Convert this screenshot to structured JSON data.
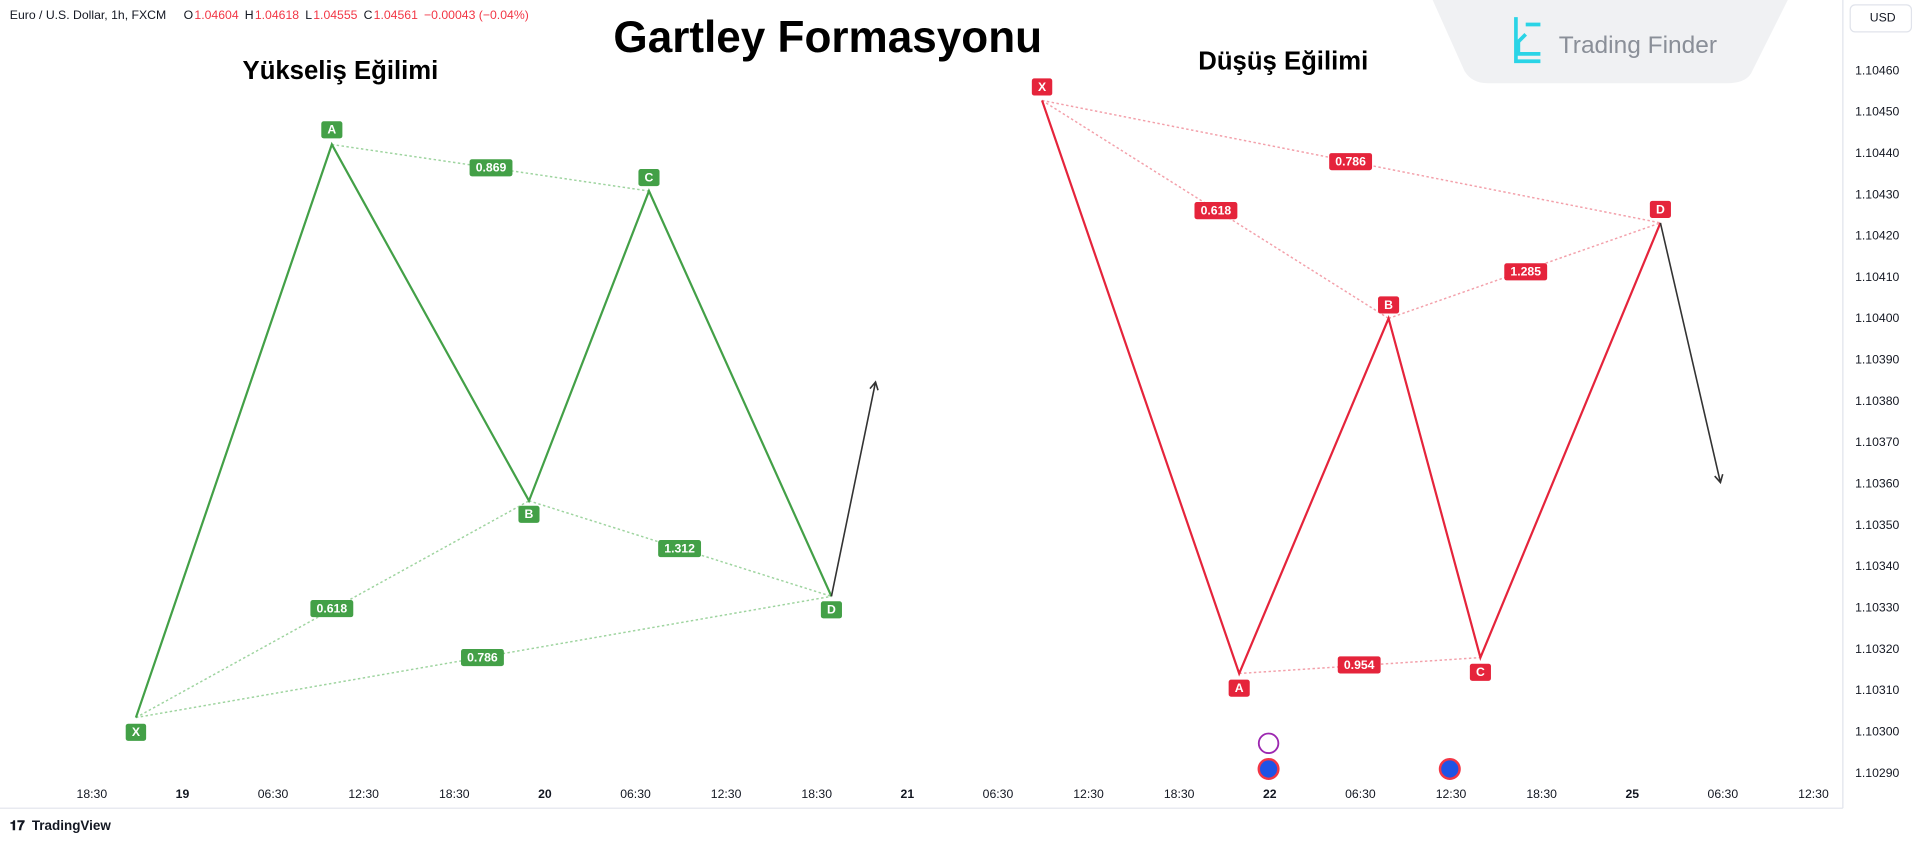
{
  "header": {
    "symbol": "Euro / U.S. Dollar, 1h, FXCM",
    "ohlc": [
      {
        "key": "O",
        "value": "1.04604"
      },
      {
        "key": "H",
        "value": "1.04618"
      },
      {
        "key": "L",
        "value": "1.04555"
      },
      {
        "key": "C",
        "value": "1.04561"
      }
    ],
    "change": "−0.00043 (−0.04%)"
  },
  "title": "Gartley Formasyonu",
  "logo": "Trading Finder",
  "currency": "USD",
  "bullish": {
    "title": "Yükseliş Eğilimi",
    "points": [
      "X",
      "A",
      "B",
      "C",
      "D"
    ],
    "ratios": [
      "0.869",
      "0.618",
      "1.312",
      "0.786"
    ]
  },
  "bearish": {
    "title": "Düşüş Eğilimi",
    "points": [
      "X",
      "A",
      "B",
      "C",
      "D"
    ],
    "ratios": [
      "0.786",
      "0.618",
      "1.285",
      "0.954"
    ]
  },
  "price_axis": [
    "1.10460",
    "1.10450",
    "1.10440",
    "1.10430",
    "1.10420",
    "1.10410",
    "1.10400",
    "1.10390",
    "1.10380",
    "1.10370",
    "1.10360",
    "1.10350",
    "1.10340",
    "1.10330",
    "1.10320",
    "1.10310",
    "1.10300",
    "1.10290"
  ],
  "time_axis": [
    "18:30",
    "19",
    "06:30",
    "12:30",
    "18:30",
    "20",
    "06:30",
    "12:30",
    "18:30",
    "21",
    "06:30",
    "12:30",
    "18:30",
    "22",
    "06:30",
    "12:30",
    "18:30",
    "25",
    "06:30",
    "12:30"
  ],
  "footer": "TradingView"
}
